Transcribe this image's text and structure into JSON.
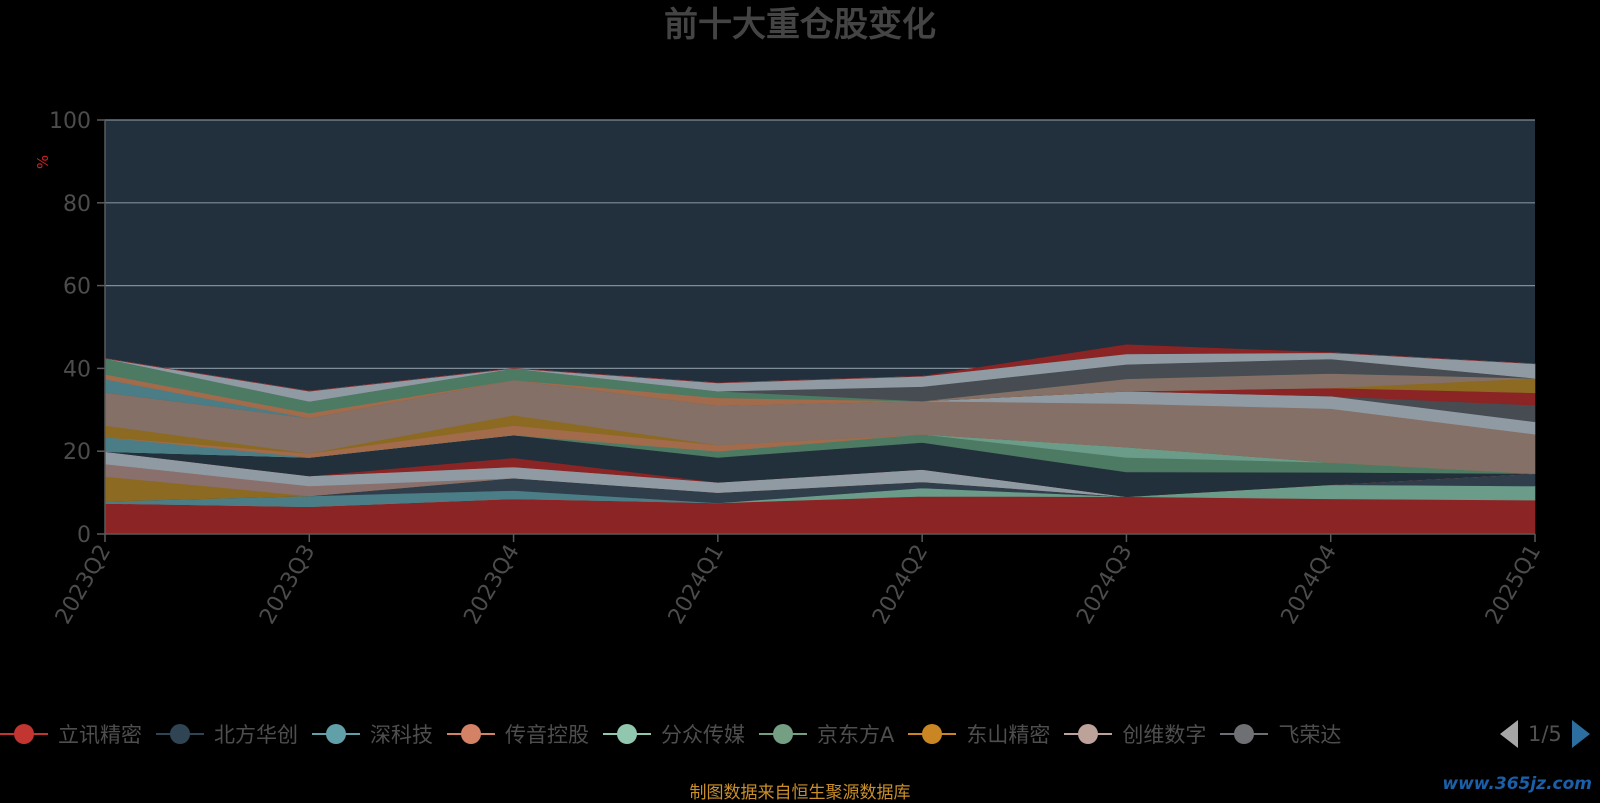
{
  "chart_data": {
    "type": "area",
    "stacked": true,
    "title": "前十大重仓股变化",
    "ylabel": "%",
    "ylim": [
      0,
      100
    ],
    "yticks": [
      0,
      20,
      40,
      60,
      80,
      100
    ],
    "grid": true,
    "categories": [
      "2023Q2",
      "2023Q3",
      "2023Q4",
      "2024Q1",
      "2024Q2",
      "2024Q3",
      "2024Q4",
      "2025Q1"
    ],
    "colors": {
      "background": "#000000",
      "plot_background": "#21303c",
      "grid": "#7e8d97",
      "title": "#444444",
      "axis_text": "#4c4c4c",
      "ylabel": "#cc2222"
    },
    "series": [
      {
        "name": "立讯精密",
        "color": "#8b2424",
        "values": [
          7.4,
          6.6,
          8.5,
          7.5,
          9.1,
          9.0,
          8.5,
          8.2
        ]
      },
      {
        "name": "",
        "color": "#6b9b89",
        "values": [
          0.0,
          0.0,
          0.0,
          0.0,
          2.0,
          0.0,
          3.4,
          3.4
        ]
      },
      {
        "name": "深科技",
        "color": "#4a7d86",
        "values": [
          0.5,
          2.6,
          2.0,
          0.0,
          0.0,
          0.0,
          0.0,
          0.0
        ]
      },
      {
        "name": "北方华创",
        "color": "#303e4c",
        "values": [
          0.0,
          0.0,
          3.0,
          2.5,
          1.5,
          0.0,
          0.0,
          3.0
        ]
      },
      {
        "name": "东山精密",
        "color": "#8c6a22",
        "values": [
          6.0,
          0.0,
          0.0,
          0.0,
          0.0,
          0.0,
          0.0,
          0.0
        ]
      },
      {
        "name": "创维数字",
        "color": "#8a706c",
        "values": [
          3.0,
          2.4,
          0.0,
          0.0,
          0.0,
          0.0,
          0.0,
          0.0
        ]
      },
      {
        "name": "",
        "color": "#909aa3",
        "values": [
          3.0,
          2.4,
          2.7,
          2.5,
          3.0,
          0.0,
          0.0,
          0.0
        ]
      },
      {
        "name": "传音控股",
        "color": "#8b2424",
        "values": [
          0.0,
          0.0,
          2.2,
          0.0,
          0.0,
          0.0,
          0.0,
          0.0
        ]
      },
      {
        "name": "",
        "color": "#22303b",
        "values": [
          0.0,
          4.5,
          5.5,
          6.0,
          6.5,
          6.0,
          3.0,
          0.0
        ]
      },
      {
        "name": "",
        "color": "#4d7a63",
        "values": [
          0.0,
          0.0,
          0.0,
          1.5,
          2.0,
          3.5,
          2.4,
          0.0
        ]
      },
      {
        "name": "",
        "color": "#6b9b89",
        "values": [
          0.0,
          0.0,
          0.0,
          0.0,
          0.0,
          2.5,
          0.0,
          0.0
        ]
      },
      {
        "name": "",
        "color": "#4a7d86",
        "values": [
          3.5,
          0.0,
          0.0,
          0.0,
          0.0,
          0.0,
          0.0,
          0.0
        ]
      },
      {
        "name": "",
        "color": "#a16b4c",
        "values": [
          0.0,
          1.0,
          2.3,
          1.5,
          0.0,
          0.0,
          0.0,
          0.0
        ]
      },
      {
        "name": "",
        "color": "#8c6a22",
        "values": [
          2.8,
          0.0,
          2.5,
          0.0,
          0.0,
          0.0,
          0.0,
          0.0
        ]
      },
      {
        "name": "",
        "color": "#847066",
        "values": [
          8.0,
          8.5,
          8.5,
          9.5,
          8.0,
          10.5,
          13.0,
          9.5
        ]
      },
      {
        "name": "",
        "color": "#909aa3",
        "values": [
          0.0,
          0.0,
          0.0,
          0.0,
          0.0,
          3.0,
          3.0,
          3.0
        ]
      },
      {
        "name": "",
        "color": "#464c52",
        "values": [
          0.0,
          0.0,
          0.0,
          0.0,
          0.0,
          0.0,
          0.0,
          4.0
        ]
      },
      {
        "name": "",
        "color": "#8b2424",
        "values": [
          0.0,
          0.0,
          0.0,
          0.0,
          0.0,
          0.0,
          2.0,
          3.0
        ]
      },
      {
        "name": "",
        "color": "#8c6a22",
        "values": [
          0.0,
          0.0,
          0.0,
          0.0,
          0.0,
          0.0,
          0.0,
          3.5
        ]
      },
      {
        "name": "",
        "color": "#847066",
        "values": [
          0.0,
          0.0,
          0.0,
          0.0,
          0.0,
          3.0,
          3.5,
          0.0
        ]
      },
      {
        "name": "",
        "color": "#4a7d86",
        "values": [
          3.2,
          0.0,
          0.0,
          0.0,
          0.0,
          0.0,
          0.0,
          0.0
        ]
      },
      {
        "name": "",
        "color": "#a16b4c",
        "values": [
          1.2,
          1.2,
          0.0,
          1.9,
          0.0,
          0.0,
          0.0,
          0.0
        ]
      },
      {
        "name": "",
        "color": "#4d7a63",
        "values": [
          3.8,
          2.8,
          2.8,
          1.6,
          0.0,
          0.0,
          0.0,
          0.0
        ]
      },
      {
        "name": "",
        "color": "#464c52",
        "values": [
          0.0,
          0.0,
          0.0,
          0.0,
          3.5,
          3.5,
          3.5,
          0.0
        ]
      },
      {
        "name": "",
        "color": "#909aa3",
        "values": [
          0.0,
          2.5,
          0.0,
          2.0,
          2.5,
          2.5,
          1.5,
          3.5
        ]
      },
      {
        "name": "",
        "color": "#8b2424",
        "values": [
          0.0,
          0.0,
          0.0,
          0.0,
          0.0,
          2.2,
          0.0,
          0.0
        ]
      }
    ]
  },
  "legend": {
    "items": [
      {
        "label": "立讯精密",
        "color": "#c23531"
      },
      {
        "label": "北方华创",
        "color": "#2f4554"
      },
      {
        "label": "深科技",
        "color": "#61a0a8"
      },
      {
        "label": "传音控股",
        "color": "#d48265"
      },
      {
        "label": "分众传媒",
        "color": "#91c7ae"
      },
      {
        "label": "京东方A",
        "color": "#749f83"
      },
      {
        "label": "东山精密",
        "color": "#ca8622"
      },
      {
        "label": "创维数字",
        "color": "#bda29a"
      },
      {
        "label": "飞荣达",
        "color": "#6e7074"
      }
    ],
    "pager": "1/5"
  },
  "footer": {
    "source": "制图数据来自恒生聚源数据库",
    "watermark": "www.365jz.com"
  }
}
